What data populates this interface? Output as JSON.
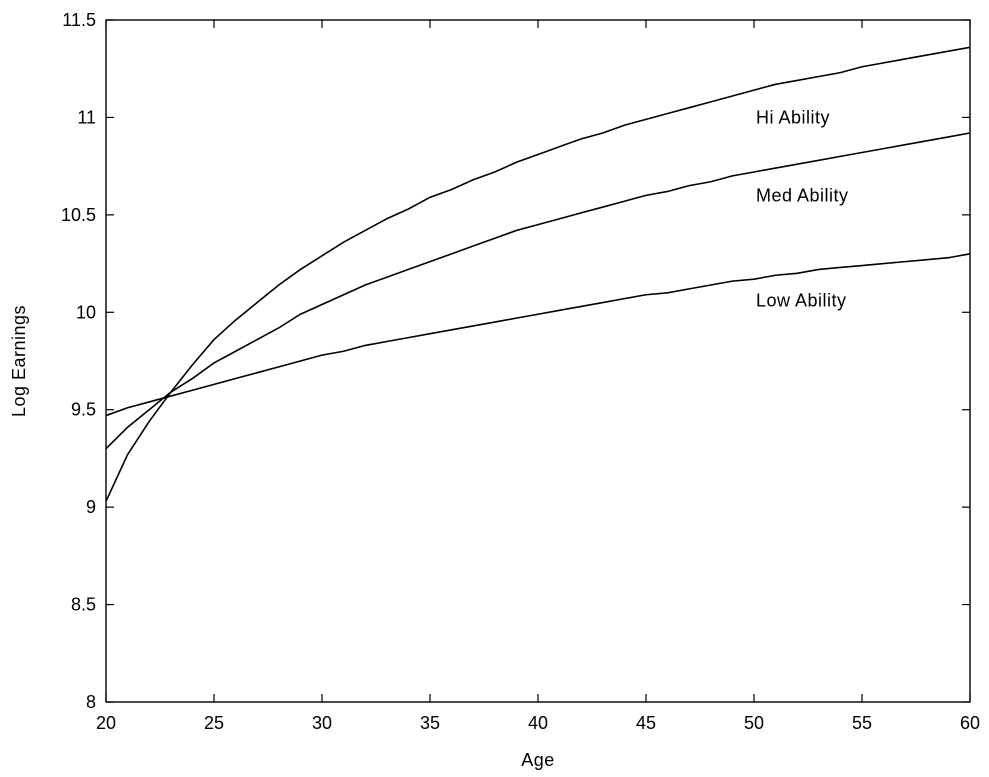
{
  "chart_data": {
    "type": "line",
    "title": "",
    "xlabel": "Age",
    "ylabel": "Log Earnings",
    "xlim": [
      20,
      60
    ],
    "ylim": [
      8,
      11.5
    ],
    "xticks": [
      20,
      25,
      30,
      35,
      40,
      45,
      50,
      55,
      60
    ],
    "yticks": [
      8,
      8.5,
      9,
      9.5,
      10,
      10.5,
      11,
      11.5
    ],
    "xtick_labels": [
      "20",
      "25",
      "30",
      "35",
      "40",
      "45",
      "50",
      "55",
      "60"
    ],
    "ytick_labels": [
      "8",
      "8.5",
      "9",
      "9.5",
      "10",
      "10.5",
      "11",
      "11.5"
    ],
    "grid": false,
    "line_color": "#000000",
    "x": [
      20,
      21,
      22,
      23,
      24,
      25,
      26,
      27,
      28,
      29,
      30,
      31,
      32,
      33,
      34,
      35,
      36,
      37,
      38,
      39,
      40,
      41,
      42,
      43,
      44,
      45,
      46,
      47,
      48,
      49,
      50,
      51,
      52,
      53,
      54,
      55,
      56,
      57,
      58,
      59,
      60
    ],
    "series": [
      {
        "name": "Hi Ability",
        "label_at": [
          50,
          11.0
        ],
        "values": [
          9.03,
          9.27,
          9.44,
          9.59,
          9.73,
          9.86,
          9.96,
          10.05,
          10.14,
          10.22,
          10.29,
          10.36,
          10.42,
          10.48,
          10.53,
          10.59,
          10.63,
          10.68,
          10.72,
          10.77,
          10.81,
          10.85,
          10.89,
          10.92,
          10.96,
          10.99,
          11.02,
          11.05,
          11.08,
          11.11,
          11.14,
          11.17,
          11.19,
          11.21,
          11.23,
          11.26,
          11.28,
          11.3,
          11.32,
          11.34,
          11.36
        ]
      },
      {
        "name": "Med Ability",
        "label_at": [
          50,
          10.6
        ],
        "values": [
          9.3,
          9.41,
          9.5,
          9.59,
          9.66,
          9.74,
          9.8,
          9.86,
          9.92,
          9.99,
          10.04,
          10.09,
          10.14,
          10.18,
          10.22,
          10.26,
          10.3,
          10.34,
          10.38,
          10.42,
          10.45,
          10.48,
          10.51,
          10.54,
          10.57,
          10.6,
          10.62,
          10.65,
          10.67,
          10.7,
          10.72,
          10.74,
          10.76,
          10.78,
          10.8,
          10.82,
          10.84,
          10.86,
          10.88,
          10.9,
          10.92
        ]
      },
      {
        "name": "Low Ability",
        "label_at": [
          50,
          10.06
        ],
        "values": [
          9.47,
          9.51,
          9.54,
          9.57,
          9.6,
          9.63,
          9.66,
          9.69,
          9.72,
          9.75,
          9.78,
          9.8,
          9.83,
          9.85,
          9.87,
          9.89,
          9.91,
          9.93,
          9.95,
          9.97,
          9.99,
          10.01,
          10.03,
          10.05,
          10.07,
          10.09,
          10.1,
          10.12,
          10.14,
          10.16,
          10.17,
          10.19,
          10.2,
          10.22,
          10.23,
          10.24,
          10.25,
          10.26,
          10.27,
          10.28,
          10.3
        ]
      }
    ]
  }
}
